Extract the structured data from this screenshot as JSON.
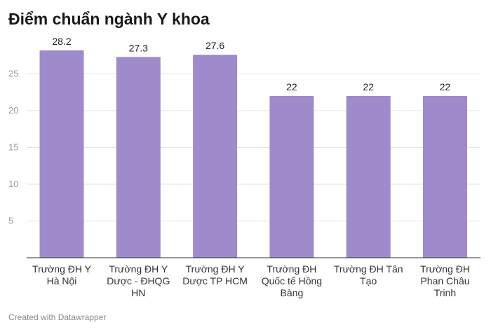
{
  "chart_data": {
    "type": "bar",
    "title": "Điểm chuẩn ngành Y khoa",
    "categories": [
      "Trường ĐH Y Hà Nội",
      "Trường ĐH Y Dược - ĐHQG HN",
      "Trường ĐH Y Dược TP HCM",
      "Trường ĐH Quốc tế Hồng Bàng",
      "Trường ĐH Tân Tạo",
      "Trường ĐH Phan Châu Trinh"
    ],
    "values": [
      28.2,
      27.3,
      27.6,
      22,
      22,
      22
    ],
    "value_labels": [
      "28.2",
      "27.3",
      "27.6",
      "22",
      "22",
      "22"
    ],
    "ylim": [
      0,
      30
    ],
    "yticks": [
      5,
      10,
      15,
      20,
      25
    ],
    "grid": true,
    "bar_color": "#9f8acb"
  },
  "footer": {
    "credit": "Created with Datawrapper"
  }
}
